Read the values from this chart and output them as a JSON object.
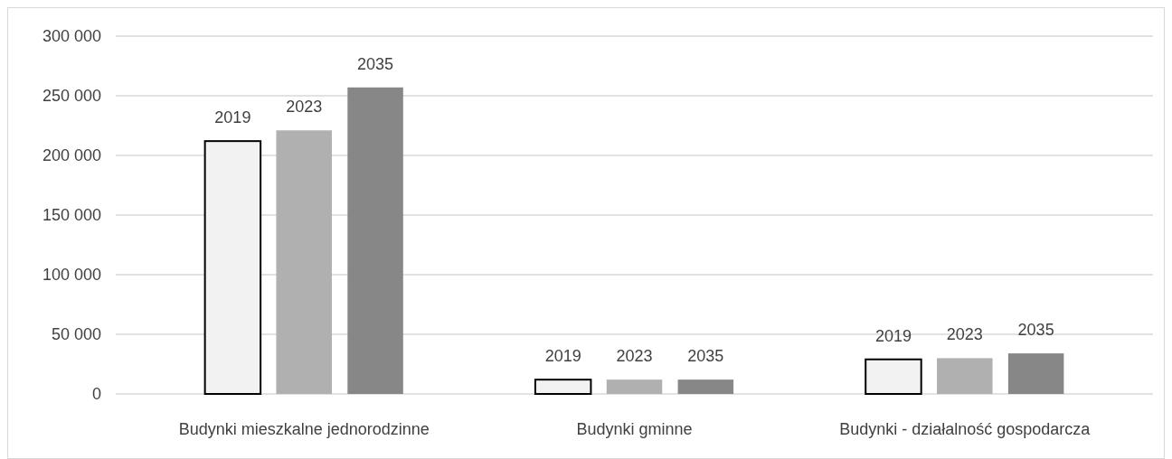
{
  "chart_data": {
    "type": "bar",
    "categories": [
      "Budynki mieszkalne jednorodzinne",
      "Budynki gminne",
      "Budynki - działalność gospodarcza"
    ],
    "series": [
      {
        "name": "2019",
        "color": "#f2f2f2",
        "values": [
          212000,
          12000,
          29000
        ]
      },
      {
        "name": "2023",
        "color": "#b0b0b0",
        "values": [
          221000,
          12000,
          30000
        ]
      },
      {
        "name": "2035",
        "color": "#878787",
        "values": [
          257000,
          12000,
          34000
        ]
      }
    ],
    "ylim": [
      0,
      300000
    ],
    "yticks": [
      {
        "value": 0,
        "label": "0"
      },
      {
        "value": 50000,
        "label": "50 000"
      },
      {
        "value": 100000,
        "label": "100 000"
      },
      {
        "value": 150000,
        "label": "150 000"
      },
      {
        "value": 200000,
        "label": "200 000"
      },
      {
        "value": 250000,
        "label": "250 000"
      },
      {
        "value": 300000,
        "label": "300 000"
      }
    ],
    "grid": "y"
  }
}
